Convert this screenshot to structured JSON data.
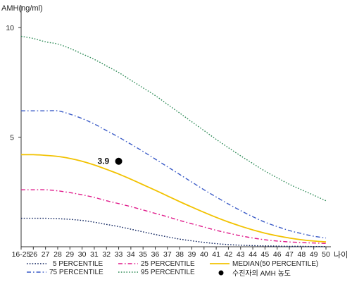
{
  "chart_data": {
    "type": "line",
    "title": "",
    "ylabel": "AMH(ng/ml)",
    "xlabel": "나이",
    "ylim": [
      0,
      11
    ],
    "y_ticks": [
      5,
      10
    ],
    "y_tick_labels": [
      "5",
      "10"
    ],
    "categories": [
      "16-25",
      "26",
      "27",
      "28",
      "29",
      "30",
      "31",
      "32",
      "33",
      "34",
      "35",
      "36",
      "37",
      "38",
      "39",
      "40",
      "41",
      "42",
      "43",
      "44",
      "45",
      "46",
      "47",
      "48",
      "49",
      "50"
    ],
    "grid": false,
    "legend_position": "bottom",
    "series": [
      {
        "name": "5 PERCENTILE",
        "color": "#0a1f5c",
        "dash": "dot",
        "values": [
          1.3,
          1.3,
          1.3,
          1.28,
          1.25,
          1.2,
          1.12,
          1.02,
          0.92,
          0.8,
          0.68,
          0.56,
          0.45,
          0.35,
          0.27,
          0.2,
          0.14,
          0.1,
          0.07,
          0.05,
          0.04,
          0.03,
          0.02,
          0.02,
          0.01,
          0.01
        ]
      },
      {
        "name": "75 PERCENTILE",
        "color": "#3a5bc7",
        "dash": "dashdot",
        "values": [
          6.2,
          6.2,
          6.2,
          6.2,
          6.05,
          5.85,
          5.6,
          5.3,
          5.0,
          4.68,
          4.35,
          4.0,
          3.65,
          3.3,
          2.95,
          2.6,
          2.27,
          1.95,
          1.65,
          1.37,
          1.12,
          0.92,
          0.74,
          0.6,
          0.48,
          0.4
        ]
      },
      {
        "name": "25 PERCENTILE",
        "color": "#e0198a",
        "dash": "dashdot",
        "values": [
          2.6,
          2.6,
          2.6,
          2.55,
          2.47,
          2.37,
          2.25,
          2.1,
          1.97,
          1.83,
          1.68,
          1.52,
          1.37,
          1.2,
          1.05,
          0.9,
          0.75,
          0.62,
          0.5,
          0.4,
          0.32,
          0.26,
          0.22,
          0.19,
          0.17,
          0.15
        ]
      },
      {
        "name": "95 PERCENTILE",
        "color": "#2e8b57",
        "dash": "dot",
        "values": [
          9.6,
          9.5,
          9.35,
          9.25,
          9.05,
          8.8,
          8.55,
          8.25,
          7.95,
          7.6,
          7.25,
          6.9,
          6.5,
          6.1,
          5.7,
          5.3,
          4.9,
          4.52,
          4.15,
          3.8,
          3.45,
          3.15,
          2.85,
          2.6,
          2.35,
          2.1
        ]
      },
      {
        "name": "MEDIAN(50 PERCENTILE)",
        "color": "#f2c200",
        "dash": "solid",
        "values": [
          4.2,
          4.2,
          4.17,
          4.12,
          4.03,
          3.9,
          3.73,
          3.53,
          3.32,
          3.08,
          2.83,
          2.58,
          2.32,
          2.06,
          1.81,
          1.57,
          1.34,
          1.13,
          0.94,
          0.77,
          0.62,
          0.5,
          0.4,
          0.32,
          0.26,
          0.22
        ]
      }
    ],
    "marker": {
      "name": "수진자의 AMH 농도",
      "x": "33",
      "y": 3.9,
      "label": "3.9",
      "color": "#000000"
    }
  }
}
